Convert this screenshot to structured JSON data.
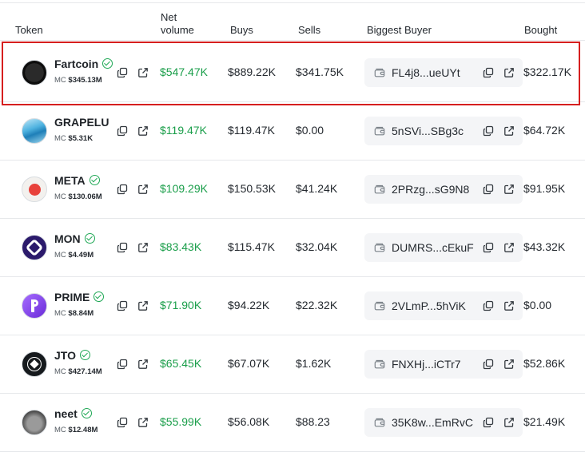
{
  "header": {
    "token": "Token",
    "net_volume": "Net volume",
    "buys": "Buys",
    "sells": "Sells",
    "biggest_buyer": "Biggest Buyer",
    "bought": "Bought"
  },
  "mc_prefix": "MC",
  "colors": {
    "positive": "#1a9e4a",
    "verified": "#1fa855",
    "highlight": "#d61f1f"
  },
  "rows": [
    {
      "name": "Fartcoin",
      "verified": true,
      "mc": "$345.13M",
      "net_volume": "$547.47K",
      "buys": "$889.22K",
      "sells": "$341.75K",
      "buyer": "FL4j8...ueUYt",
      "bought": "$322.17K",
      "highlighted": true
    },
    {
      "name": "GRAPELU",
      "verified": false,
      "mc": "$5.31K",
      "net_volume": "$119.47K",
      "buys": "$119.47K",
      "sells": "$0.00",
      "buyer": "5nSVi...SBg3c",
      "bought": "$64.72K"
    },
    {
      "name": "META",
      "verified": true,
      "mc": "$130.06M",
      "net_volume": "$109.29K",
      "buys": "$150.53K",
      "sells": "$41.24K",
      "buyer": "2PRzg...sG9N8",
      "bought": "$91.95K"
    },
    {
      "name": "MON",
      "verified": true,
      "mc": "$4.49M",
      "net_volume": "$83.43K",
      "buys": "$115.47K",
      "sells": "$32.04K",
      "buyer": "DUMRS...cEkuF",
      "bought": "$43.32K"
    },
    {
      "name": "PRIME",
      "verified": true,
      "mc": "$8.84M",
      "net_volume": "$71.90K",
      "buys": "$94.22K",
      "sells": "$22.32K",
      "buyer": "2VLmP...5hViK",
      "bought": "$0.00"
    },
    {
      "name": "JTO",
      "verified": true,
      "mc": "$427.14M",
      "net_volume": "$65.45K",
      "buys": "$67.07K",
      "sells": "$1.62K",
      "buyer": "FNXHj...iCTr7",
      "bought": "$52.86K"
    },
    {
      "name": "neet",
      "verified": true,
      "mc": "$12.48M",
      "net_volume": "$55.99K",
      "buys": "$56.08K",
      "sells": "$88.23",
      "buyer": "35K8w...EmRvC",
      "bought": "$21.49K"
    }
  ]
}
